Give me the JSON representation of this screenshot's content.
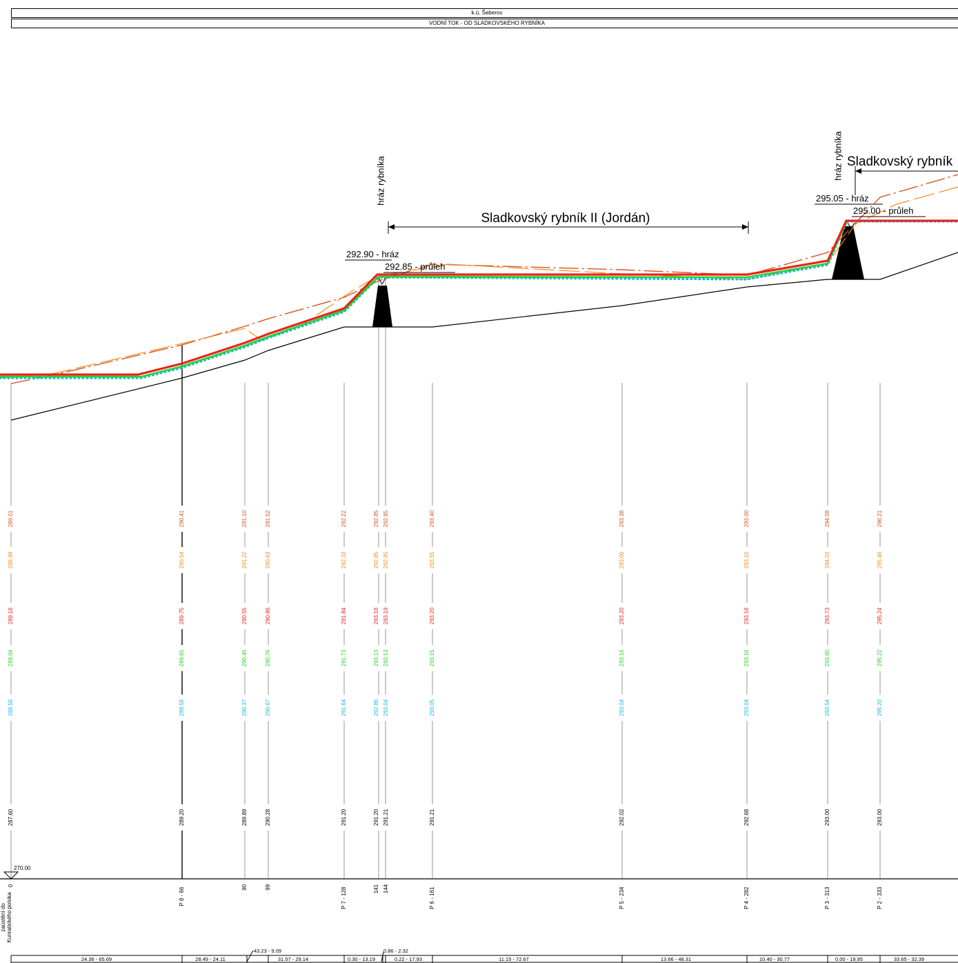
{
  "header": {
    "line1": "k.ú. Šeberov",
    "line2": "VODNÍ TOK - OD SLADKOVSKÉHO RYBNÍKA"
  },
  "annotations": {
    "dam_label_1": "hráz rybníka",
    "dam_label_2": "hráz rybníka",
    "pond_1": "Sladkovský rybník II (Jordán)",
    "pond_2": "Sladkovský rybník",
    "dam1_crest": "292.90 - hráz",
    "dam1_pass": "292.85 - průleh",
    "dam2_crest": "295.05 - hráz",
    "dam2_pass": "295.00 - průleh",
    "datum": "270.00",
    "mouth_label_1": "zaústění do",
    "mouth_label_2": "Kunratického potoka"
  },
  "colors": {
    "red": "#e8231d",
    "dark_orange": "#d9501e",
    "orange": "#f08c1c",
    "green": "#25d32a",
    "cyan": "#1ab7e8",
    "terrain": "#000000",
    "grid": "#7a7a7a"
  },
  "chart_data": {
    "type": "line",
    "stations": [
      {
        "id": "0",
        "label": "0",
        "bottom": "287.60",
        "r1": "289.01",
        "o": "288.99",
        "r2": "289.18",
        "g": "289.04",
        "c": "288.56"
      },
      {
        "id": "p8",
        "label": "P 8 - 66",
        "bottom": "289.20",
        "r1": "290.41",
        "o": "290.54",
        "r2": "289.75",
        "g": "289.65",
        "c": "289.58"
      },
      {
        "id": "s90",
        "label": "90",
        "bottom": "289.89",
        "r1": "291.10",
        "o": "291.22",
        "r2": "290.55",
        "g": "290.45",
        "c": "290.37"
      },
      {
        "id": "s99",
        "label": "99",
        "bottom": "290.28",
        "r1": "291.52",
        "o": "290.63",
        "r2": "290.86",
        "g": "290.76",
        "c": "290.67"
      },
      {
        "id": "p7",
        "label": "P 7 - 128",
        "bottom": "291.20",
        "r1": "292.22",
        "o": "292.33",
        "r2": "291.84",
        "g": "291.73",
        "c": "291.64"
      },
      {
        "id": "s141",
        "label": "141",
        "bottom": "291.20",
        "r1": "292.85",
        "o": "292.85",
        "r2": "293.18",
        "g": "293.13",
        "c": "292.86"
      },
      {
        "id": "s144",
        "label": "144",
        "bottom": "291.21",
        "r1": "292.85",
        "o": "292.85",
        "r2": "293.19",
        "g": "293.13",
        "c": "293.04"
      },
      {
        "id": "p6",
        "label": "P 6 - 161",
        "bottom": "291.21",
        "r1": "293.40",
        "o": "293.55",
        "r2": "293.20",
        "g": "293.15",
        "c": "293.05"
      },
      {
        "id": "p5",
        "label": "P 5 - 234",
        "bottom": "292.02",
        "r1": "293.38",
        "o": "293.00",
        "r2": "293.20",
        "g": "293.16",
        "c": "293.04"
      },
      {
        "id": "p4",
        "label": "P 4 - 282",
        "bottom": "292.68",
        "r1": "293.00",
        "o": "293.10",
        "r2": "293.18",
        "g": "293.16",
        "c": "293.04"
      },
      {
        "id": "p3",
        "label": "P 3 - 313",
        "bottom": "293.00",
        "r1": "294.08",
        "o": "294.03",
        "r2": "293.73",
        "g": "293.60",
        "c": "293.54"
      },
      {
        "id": "p2",
        "label": "P 2 - 333",
        "bottom": "293.00",
        "r1": "296.21",
        "o": "295.46",
        "r2": "295.24",
        "g": "295.22",
        "c": "295.20"
      }
    ],
    "segments": [
      "24.36 - 65.69",
      "28.49 - 24.11",
      "43.23 - 9.09",
      "31.57 - 29.14",
      "0.30 - 13.19",
      "0.86 - 2.32",
      "0.22 - 17.93",
      "11.15 - 72.67",
      "13.66 - 48.31",
      "10.40 - 30.77",
      "0.00 - 19.95",
      "33.65 - 32.39"
    ]
  }
}
